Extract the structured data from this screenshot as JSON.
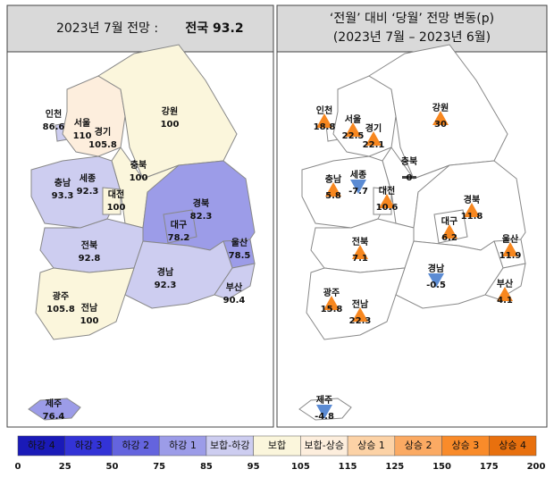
{
  "left_panel": {
    "title_prefix": "2023년 7월 전망 :",
    "title_highlight": "전국 93.2",
    "regions": [
      {
        "name": "인천",
        "value": 86.6
      },
      {
        "name": "서울",
        "value": 110
      },
      {
        "name": "경기",
        "value": 105.8
      },
      {
        "name": "강원",
        "value": 100
      },
      {
        "name": "충북",
        "value": 100
      },
      {
        "name": "세종",
        "value": 92.3
      },
      {
        "name": "충남",
        "value": 93.3
      },
      {
        "name": "대전",
        "value": 100
      },
      {
        "name": "경북",
        "value": 82.3
      },
      {
        "name": "대구",
        "value": 78.2
      },
      {
        "name": "울산",
        "value": 78.5
      },
      {
        "name": "전북",
        "value": 92.8
      },
      {
        "name": "경남",
        "value": 92.3
      },
      {
        "name": "부산",
        "value": 90.4
      },
      {
        "name": "광주",
        "value": 105.8
      },
      {
        "name": "전남",
        "value": 100
      },
      {
        "name": "제주",
        "value": 76.4
      }
    ]
  },
  "right_panel": {
    "title_lines": [
      "‘전월’ 대비 ‘당월’ 전망 변동(p)",
      "(2023년 7월 – 2023년 6월)"
    ],
    "regions": [
      {
        "name": "인천",
        "value": 18.8
      },
      {
        "name": "서울",
        "value": 22.5
      },
      {
        "name": "경기",
        "value": 22.1
      },
      {
        "name": "강원",
        "value": 30
      },
      {
        "name": "충북",
        "value": 0
      },
      {
        "name": "세종",
        "value": -7.7
      },
      {
        "name": "충남",
        "value": 5.8
      },
      {
        "name": "대전",
        "value": 10.6
      },
      {
        "name": "경북",
        "value": 11.8
      },
      {
        "name": "대구",
        "value": 6.2
      },
      {
        "name": "울산",
        "value": 11.9
      },
      {
        "name": "전북",
        "value": 7.1
      },
      {
        "name": "경남",
        "value": -0.5
      },
      {
        "name": "부산",
        "value": 4.1
      },
      {
        "name": "광주",
        "value": 15.8
      },
      {
        "name": "전남",
        "value": 22.3
      },
      {
        "name": "제주",
        "value": -4.8
      }
    ]
  },
  "legend": {
    "items": [
      {
        "label": "하강 4",
        "color": "#1a1ab8"
      },
      {
        "label": "하강 3",
        "color": "#3333d6"
      },
      {
        "label": "하강 2",
        "color": "#6464de"
      },
      {
        "label": "하강 1",
        "color": "#9c9ce8"
      },
      {
        "label": "보합-하강",
        "color": "#cdcdf0"
      },
      {
        "label": "보합",
        "color": "#fbf6dc"
      },
      {
        "label": "보합-상승",
        "color": "#fdeedd"
      },
      {
        "label": "상승 1",
        "color": "#fcd2a6"
      },
      {
        "label": "상승 2",
        "color": "#fbaa63"
      },
      {
        "label": "상승 3",
        "color": "#f98b2a"
      },
      {
        "label": "상승 4",
        "color": "#e8700e"
      }
    ],
    "ticks": [
      0,
      25,
      50,
      75,
      85,
      95,
      105,
      115,
      125,
      150,
      175,
      200
    ]
  }
}
